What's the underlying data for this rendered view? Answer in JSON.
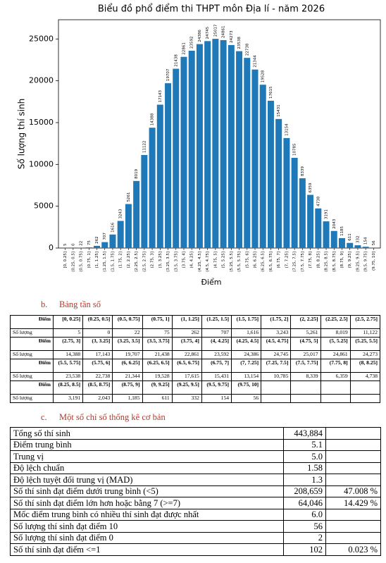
{
  "chart_data": {
    "type": "bar",
    "title": "Biểu đồ phổ điểm thi THPT môn Địa lí - năm 2026",
    "xlabel": "Điểm",
    "ylabel": "Số lượng thí sinh",
    "color": "#1f78b8",
    "categories": [
      "[0, 0.25]",
      "(0.25, 0.5]",
      "(0.5, 0.75]",
      "(0.75, 1]",
      "(1, 1.25]",
      "(1.25, 1.5]",
      "(1.5, 1.75]",
      "(1.75, 2]",
      "(2, 2.25]",
      "(2.25, 2.5]",
      "(2.5, 2.75]",
      "(2.75, 3]",
      "(3, 3.25]",
      "(3.25, 3.5]",
      "(3.5, 3.75]",
      "(3.75, 4]",
      "(4, 4.25]",
      "(4.25, 4.5]",
      "(4.5, 4.75]",
      "(4.75, 5]",
      "(5, 5.25]",
      "(5.25, 5.5]",
      "(5.5, 5.75]",
      "(5.75, 6]",
      "(6, 6.25]",
      "(6.25, 6.5]",
      "(6.5, 6.75]",
      "(6.75, 7]",
      "(7, 7.25]",
      "(7.25, 7.5]",
      "(7.5, 7.75]",
      "(7.75, 8]",
      "(8, 8.25]",
      "(8.25, 8.5]",
      "(8.5, 8.75]",
      "(8.75, 9]",
      "(9, 9.25]",
      "(9.25, 9.5]",
      "(9.5, 9.75]",
      "(9.75, 10]"
    ],
    "values": [
      5,
      0,
      22,
      75,
      262,
      707,
      1616,
      3243,
      5261,
      8019,
      11122,
      14388,
      17143,
      19707,
      21438,
      22861,
      23592,
      24386,
      24745,
      25017,
      24861,
      24273,
      23538,
      22738,
      21344,
      19528,
      17615,
      15431,
      13154,
      10785,
      8339,
      6359,
      4738,
      3191,
      2043,
      1185,
      611,
      332,
      154,
      56
    ],
    "ylim": [
      0,
      27300
    ],
    "yticks": [
      0,
      5000,
      10000,
      15000,
      20000,
      25000
    ]
  },
  "freq_section": {
    "label": "b.",
    "title": "Bảng tần số"
  },
  "freq_table": {
    "row_labels": [
      "Điểm",
      "Số lượng"
    ],
    "counts": [
      "5",
      "0",
      "22",
      "75",
      "262",
      "707",
      "1,616",
      "3,243",
      "5,261",
      "8,019",
      "11,122",
      "14,388",
      "17,143",
      "19,707",
      "21,438",
      "22,861",
      "23,592",
      "24,386",
      "24,745",
      "25,017",
      "24,861",
      "24,273",
      "23,538",
      "22,738",
      "21,344",
      "19,528",
      "17,615",
      "15,431",
      "13,154",
      "10,785",
      "8,339",
      "6,359",
      "4,738",
      "3,191",
      "2,043",
      "1,185",
      "611",
      "332",
      "154",
      "56"
    ]
  },
  "stats_section": {
    "label": "c.",
    "title": "Một số chỉ số thống kê cơ bản"
  },
  "stats_table": {
    "rows": [
      [
        "Tổng số thí sinh",
        "443,884"
      ],
      [
        "Điểm trung bình",
        "5.1"
      ],
      [
        "Trung vị",
        "5.0"
      ],
      [
        "Độ lệch chuẩn",
        "1.58"
      ],
      [
        "Độ lệch tuyệt đối trung vị (MAD)",
        "1.3"
      ],
      [
        "Số thí sinh đạt điểm dưới trung bình (<5)",
        "208,659",
        "47.008 %"
      ],
      [
        "Số thí sinh đạt điểm lớn hơn hoặc bằng 7 (>=7)",
        "64,046",
        "14.429 %"
      ],
      [
        "Mốc điểm trung bình có nhiều thí sinh đạt được nhất",
        "6.0"
      ],
      [
        "Số lượng thí sinh đạt điểm 10",
        "56"
      ],
      [
        "Số lượng thí sinh đạt điểm 0",
        "2"
      ],
      [
        "Số thí sinh đạt điểm <=1",
        "102",
        "0.023 %"
      ]
    ]
  }
}
